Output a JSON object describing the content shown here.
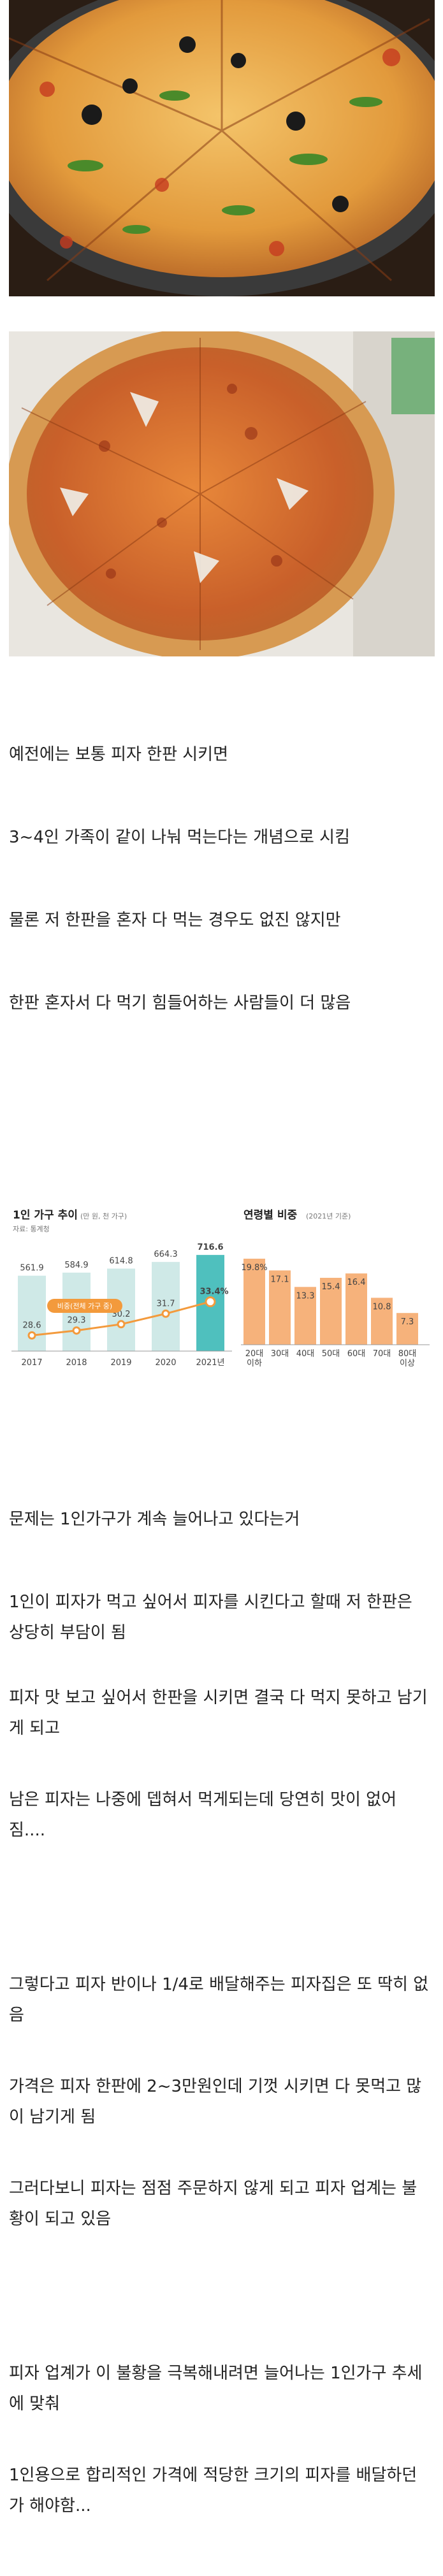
{
  "paragraphs": [
    "예전에는 보통 피자 한판 시키면",
    "3~4인 가족이 같이 나눠 먹는다는 개념으로 시킴",
    "물론 저 한판을 혼자 다 먹는 경우도 없진 않지만",
    "한판 혼자서 다 먹기 힘들어하는 사람들이 더 많음",
    "문제는 1인가구가 계속 늘어나고 있다는거",
    "1인이 피자가 먹고 싶어서 피자를 시킨다고 할때 저 한판은 상당히 부담이 됨",
    "피자 맛 보고 싶어서 한판을 시키면 결국 다 먹지 못하고 남기게 되고",
    "남은 피자는 나중에 뎁혀서 먹게되는데 당연히 맛이 없어짐....",
    "그렇다고 피자 반이나 1/4로 배달해주는 피자집은 또 딱히 없음",
    "가격은 피자 한판에 2~3만원인데 기껏 시키면 다 못먹고 많이 남기게 됨",
    "그러다보니 피자는 점점 주문하지 않게 되고 피자 업계는 불황이 되고 있음",
    "피자 업계가 이 불황을 극복해내려면 늘어나는 1인가구 추세에 맞춰",
    "1인용으로 합리적인 가격에 적당한 크기의 피자를 배달하던가 해야함..."
  ],
  "chart_data": [
    {
      "type": "bar",
      "title": "1인 가구 추이",
      "unit_label": "(만 원, 천 가구)",
      "source": "자료: 통계청",
      "categories": [
        "2017",
        "2018",
        "2019",
        "2020",
        "2021년"
      ],
      "series": [
        {
          "name": "",
          "values": [
            561.9,
            584.9,
            614.8,
            664.3,
            716.6
          ]
        },
        {
          "name": "비중(전체 가구 중)",
          "values": [
            28.6,
            29.3,
            30.2,
            31.7,
            33.4
          ]
        }
      ],
      "value_labels": [
        "561.9",
        "584.9",
        "614.8",
        "664.3",
        "716.6"
      ],
      "line_labels": [
        "28.6",
        "29.3",
        "30.2",
        "31.7",
        "33.4%"
      ],
      "colors": {
        "bar": "#cfe9e7",
        "bar_highlight": "#4fc0be",
        "line": "#f39a3c",
        "highlight_text": "#4fc0be"
      }
    },
    {
      "type": "bar",
      "title": "연령별 비중",
      "unit_label": "(2021년 기준)",
      "categories": [
        "20대 이하",
        "30대",
        "40대",
        "50대",
        "60대",
        "70대",
        "80대 이상"
      ],
      "values": [
        19.8,
        17.1,
        13.3,
        15.4,
        16.4,
        10.8,
        7.3
      ],
      "value_labels": [
        "19.8%",
        "17.1",
        "13.3",
        "15.4",
        "16.4",
        "10.8",
        "7.3"
      ],
      "colors": {
        "bar": "#f6b27b"
      }
    }
  ]
}
